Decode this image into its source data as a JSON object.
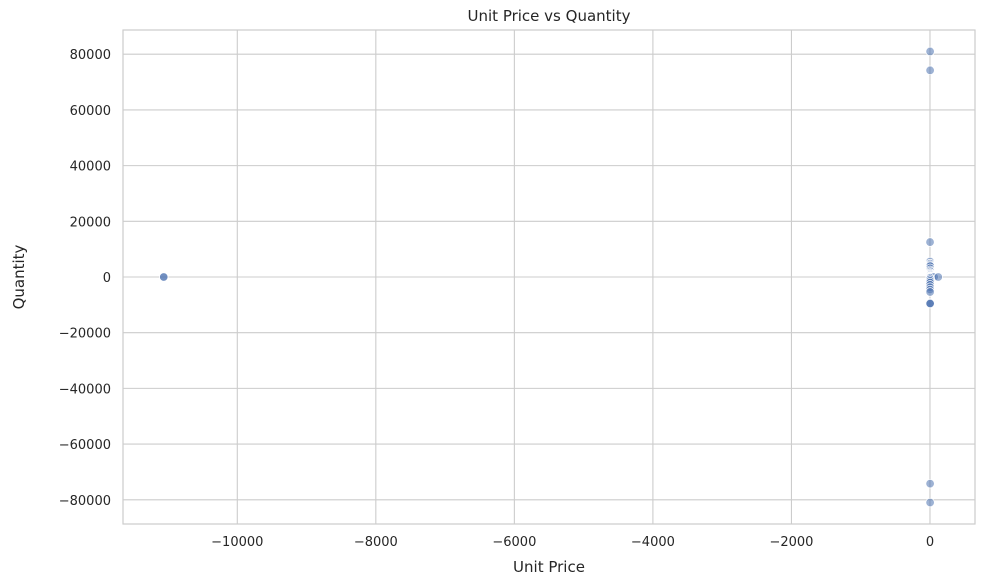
{
  "chart_data": {
    "type": "scatter",
    "title": "Unit Price vs Quantity",
    "xlabel": "Unit Price",
    "ylabel": "Quantity",
    "xlim": [
      -11650,
      650
    ],
    "ylim": [
      -88700,
      88700
    ],
    "xticks": [
      -10000,
      -8000,
      -6000,
      -4000,
      -2000,
      0
    ],
    "yticks": [
      -80000,
      -60000,
      -40000,
      -20000,
      0,
      20000,
      40000,
      60000,
      80000
    ],
    "grid": true,
    "series": [
      {
        "color": "#4c72b0",
        "opacity": 0.55,
        "points": [
          {
            "x": -11062,
            "y": 1
          },
          {
            "x": -11062,
            "y": 1
          },
          {
            "x": 2,
            "y": 80995
          },
          {
            "x": 2,
            "y": 74215
          },
          {
            "x": 1,
            "y": 12540
          },
          {
            "x": 1,
            "y": 5568
          },
          {
            "x": 2,
            "y": 4800
          },
          {
            "x": 1,
            "y": 4300
          },
          {
            "x": 3,
            "y": 3906
          },
          {
            "x": 2,
            "y": 3114
          },
          {
            "x": 1,
            "y": 2400
          },
          {
            "x": 4,
            "y": 2000
          },
          {
            "x": 2,
            "y": 1500
          },
          {
            "x": 1,
            "y": 1200
          },
          {
            "x": 3,
            "y": 900
          },
          {
            "x": 1,
            "y": 600
          },
          {
            "x": 2,
            "y": 300
          },
          {
            "x": 5,
            "y": 100
          },
          {
            "x": 10,
            "y": 50
          },
          {
            "x": 30,
            "y": 12
          },
          {
            "x": 60,
            "y": 6
          },
          {
            "x": 120,
            "y": 3
          },
          {
            "x": 2,
            "y": -300
          },
          {
            "x": 1,
            "y": -800
          },
          {
            "x": 3,
            "y": -1400
          },
          {
            "x": 2,
            "y": -2000
          },
          {
            "x": 1,
            "y": -2800
          },
          {
            "x": 2,
            "y": -3667
          },
          {
            "x": 1,
            "y": -4500
          },
          {
            "x": 2,
            "y": -5368
          },
          {
            "x": 1,
            "y": -9360
          },
          {
            "x": 3,
            "y": -9600
          },
          {
            "x": 2,
            "y": -9500
          },
          {
            "x": 2,
            "y": -74215
          },
          {
            "x": 2,
            "y": -80995
          }
        ]
      }
    ]
  }
}
